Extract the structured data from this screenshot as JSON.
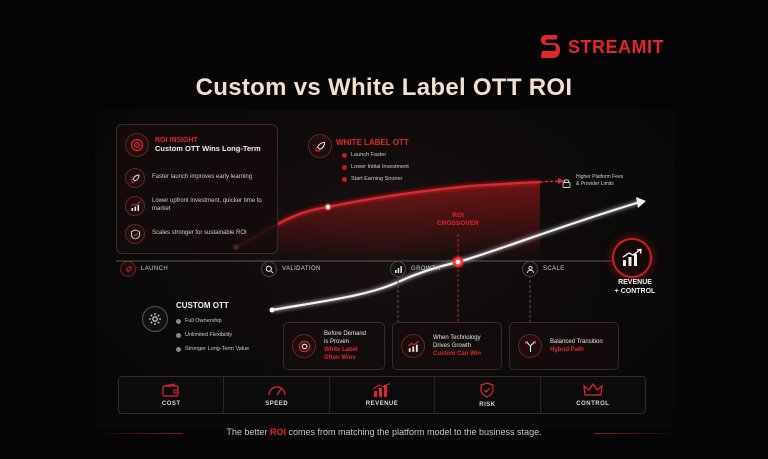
{
  "brand": {
    "name": "STREAMIT",
    "accent": "#e3262e"
  },
  "title": "Custom vs White Label OTT ROI",
  "insight_card": {
    "tag": "ROI INSIGHT",
    "title": "Custom OTT Wins Long-Term",
    "items": [
      {
        "icon": "rocket-icon",
        "text": "Faster launch improves early learning"
      },
      {
        "icon": "growth-chart-icon",
        "text": "Lower upfront investment, quicker time to market"
      },
      {
        "icon": "shield-check-icon",
        "text": "Scales stronger for sustainable ROI"
      }
    ]
  },
  "white_label": {
    "title": "WHITE LABEL OTT",
    "items": [
      "Launch Faster",
      "Lower Initial Investment",
      "Start Earning Sooner"
    ]
  },
  "fees_note": {
    "line1": "Higher Platform Fees",
    "line2": "& Provider Limits"
  },
  "crossover": {
    "line1": "ROI",
    "line2": "CROSSOVER"
  },
  "stages": [
    {
      "label": "LAUNCH",
      "icon": "rocket-icon"
    },
    {
      "label": "VALIDATION",
      "icon": "search-icon"
    },
    {
      "label": "GROWTH",
      "icon": "bar-chart-icon"
    },
    {
      "label": "SCALE",
      "icon": "users-icon"
    }
  ],
  "revenue_control": {
    "line1": "REVENUE",
    "line2": "+ CONTROL"
  },
  "custom_ott": {
    "title": "CUSTOM OTT",
    "items": [
      "Full Ownership",
      "Unlimited Flexibility",
      "Stronger Long-Term Value"
    ]
  },
  "boxes": [
    {
      "line1": "Before Demand",
      "line2": "is Proven",
      "sub1": "White Label",
      "sub2": "Often Wins",
      "icon": "target-icon"
    },
    {
      "line1": "When Technology",
      "line2": "Drives Growth",
      "sub1": "Custom Can Win",
      "sub2": "",
      "icon": "growth-chart-icon"
    },
    {
      "line1": "Balanced Transition",
      "line2": "",
      "sub1": "Hybrid Path",
      "sub2": "",
      "icon": "split-arrows-icon"
    }
  ],
  "factors": [
    {
      "label": "COST",
      "icon": "wallet-icon"
    },
    {
      "label": "SPEED",
      "icon": "speedometer-icon"
    },
    {
      "label": "REVENUE",
      "icon": "bar-chart-icon"
    },
    {
      "label": "RISK",
      "icon": "shield-check-icon"
    },
    {
      "label": "CONTROL",
      "icon": "crown-icon"
    }
  ],
  "footer": {
    "before": "The better ",
    "highlight": "ROI",
    "after": " comes from matching the platform model to the business stage."
  }
}
